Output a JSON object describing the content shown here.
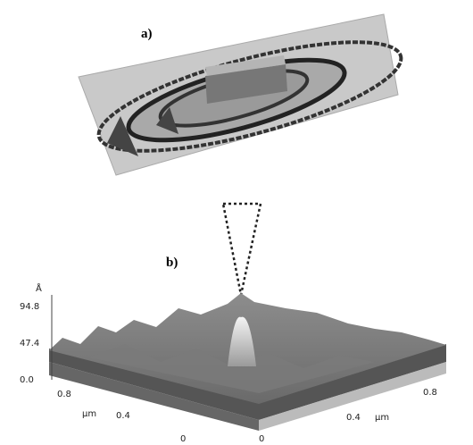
{
  "panels": [
    {
      "label": "a)"
    },
    {
      "label": "b)",
      "z_axis": {
        "unit": "Å",
        "ticks": [
          "94.8",
          "47.4",
          "0.0"
        ]
      },
      "x_axis": {
        "unit": "µm",
        "ticks": [
          "0.8",
          "0.4",
          "0"
        ]
      },
      "y_axis": {
        "unit": "µm",
        "ticks": [
          "0",
          "0.4",
          "0.8"
        ]
      }
    }
  ]
}
